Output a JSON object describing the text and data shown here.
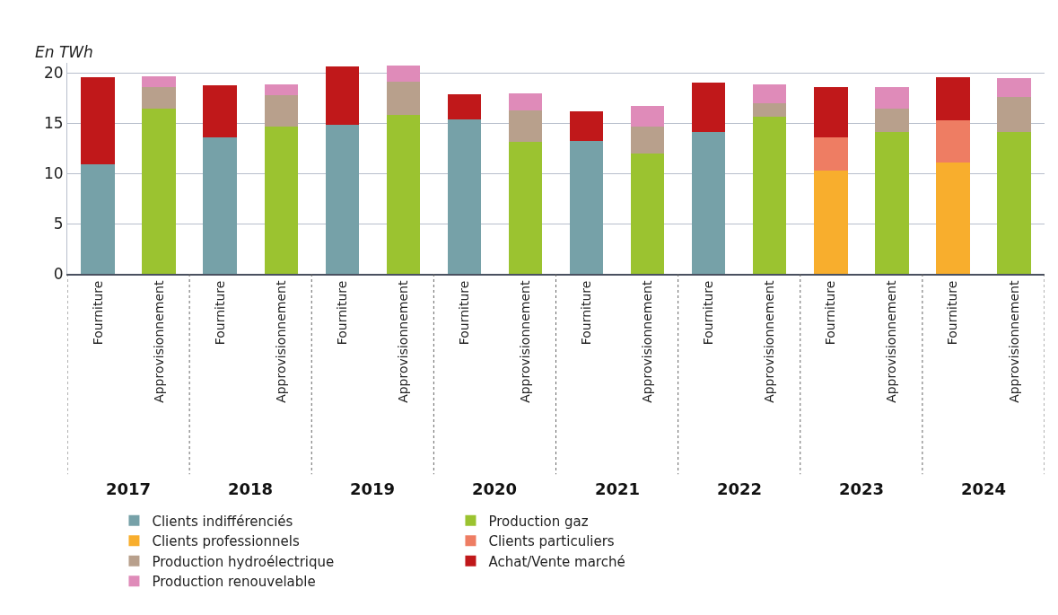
{
  "chart_data": {
    "type": "bar",
    "stacked": true,
    "ylabel": "En TWh",
    "categories": [
      "Fourniture",
      "Approvisionnement",
      "Fourniture",
      "Approvisionnement",
      "Fourniture",
      "Approvisionnement",
      "Fourniture",
      "Approvisionnement",
      "Fourniture",
      "Approvisionnement",
      "Fourniture",
      "Approvisionnement",
      "Fourniture",
      "Approvisionnement",
      "Fourniture",
      "Approvisionnement"
    ],
    "annotations": [
      "2017",
      "2018",
      "2019",
      "2020",
      "2021",
      "2022",
      "2023",
      "2024"
    ],
    "series": [
      {
        "name": "Clients indifférenciés",
        "color": "#76a1a8",
        "values": [
          10.9,
          null,
          13.6,
          null,
          14.8,
          null,
          15.4,
          null,
          13.2,
          null,
          14.1,
          null,
          null,
          null,
          null,
          null
        ]
      },
      {
        "name": "Production gaz",
        "color": "#9bc330",
        "values": [
          null,
          16.4,
          null,
          14.7,
          null,
          15.8,
          null,
          13.1,
          null,
          12.0,
          null,
          15.6,
          null,
          14.1,
          null,
          14.1
        ]
      },
      {
        "name": "Clients professionnels",
        "color": "#f8ae2d",
        "values": [
          null,
          null,
          null,
          null,
          null,
          null,
          null,
          null,
          null,
          null,
          null,
          null,
          10.3,
          null,
          11.1,
          null
        ]
      },
      {
        "name": "Clients particuliers",
        "color": "#ee7d63",
        "values": [
          null,
          null,
          null,
          null,
          null,
          null,
          null,
          null,
          null,
          null,
          null,
          null,
          3.3,
          null,
          4.2,
          null
        ]
      },
      {
        "name": "Production hydroélectrique",
        "color": "#b8a08c",
        "values": [
          null,
          2.2,
          null,
          3.1,
          null,
          3.3,
          null,
          3.2,
          null,
          2.7,
          null,
          1.4,
          null,
          2.3,
          null,
          3.5
        ]
      },
      {
        "name": "Achat/Vente marché",
        "color": "#c0181a",
        "values": [
          8.7,
          null,
          5.2,
          null,
          5.8,
          null,
          2.5,
          null,
          3.0,
          null,
          4.9,
          null,
          5.0,
          null,
          4.3,
          null
        ]
      },
      {
        "name": "Production renouvelable",
        "color": "#df8bb9",
        "values": [
          null,
          1.1,
          null,
          1.1,
          null,
          1.6,
          null,
          1.7,
          null,
          2.0,
          null,
          1.9,
          null,
          2.2,
          null,
          1.9
        ]
      }
    ],
    "ylim": [
      0,
      21
    ],
    "yticks": [
      0,
      5,
      10,
      15,
      20
    ],
    "grid": "y",
    "legend": "bottom"
  }
}
